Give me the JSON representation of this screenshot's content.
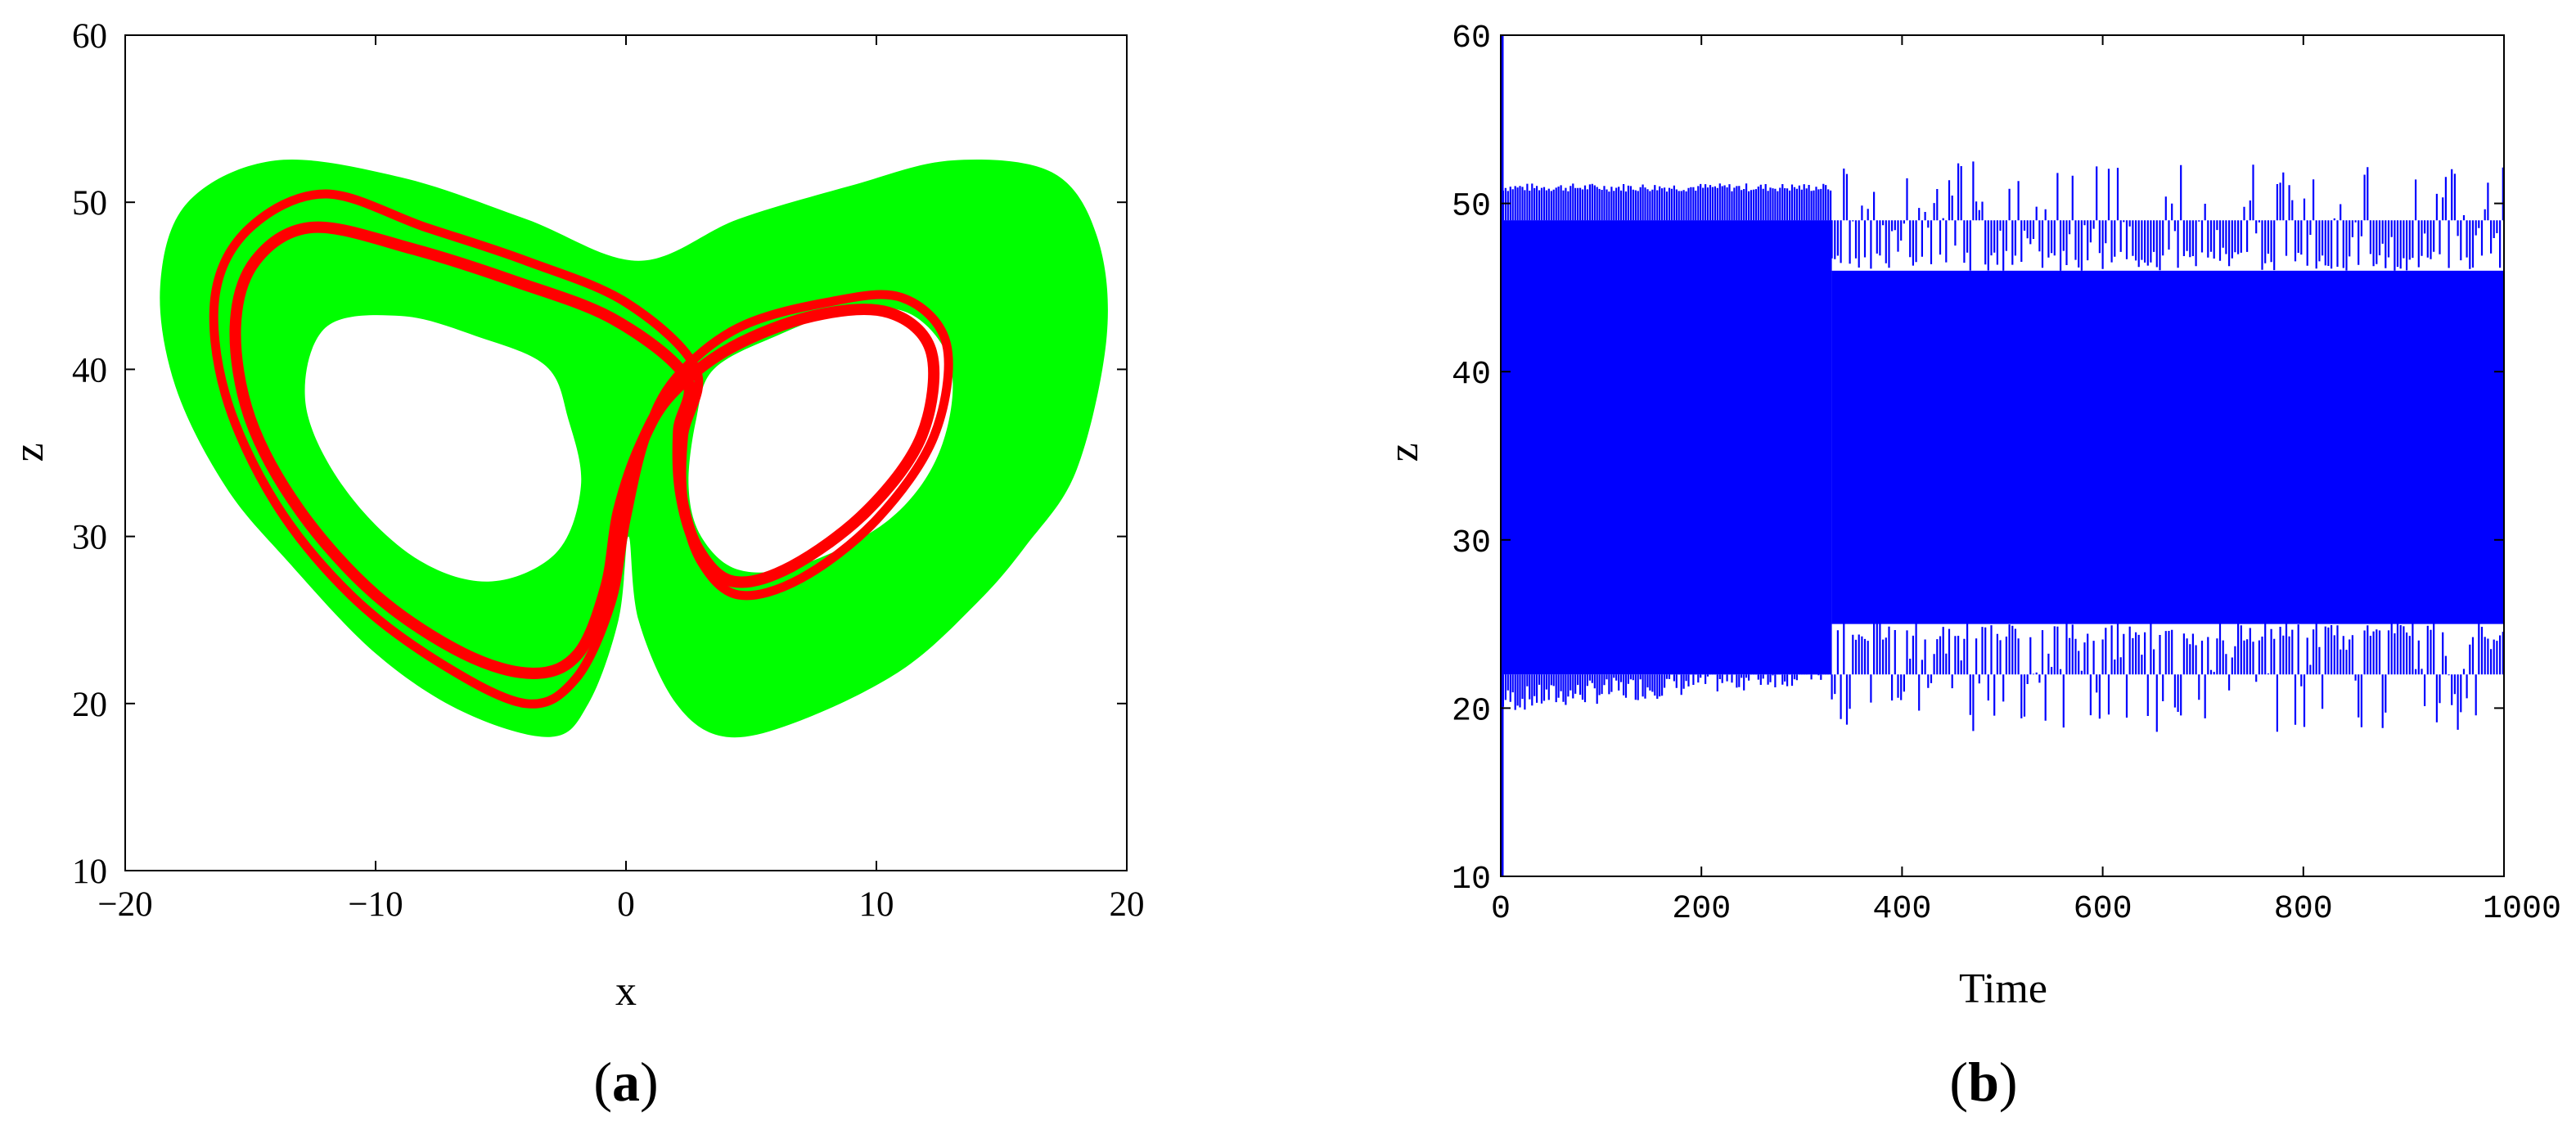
{
  "chart_data": [
    {
      "id": "a",
      "type": "line",
      "panel_label": {
        "open": "(",
        "letter": "a",
        "close": ")"
      },
      "xlabel": "x",
      "ylabel": "z",
      "xlim": [
        -20,
        20
      ],
      "ylim": [
        10,
        60
      ],
      "xticks": [
        "−20",
        "−10",
        "0",
        "10",
        "20"
      ],
      "xtick_values": [
        -20,
        -10,
        0,
        10,
        20
      ],
      "yticks": [
        "10",
        "20",
        "30",
        "40",
        "50",
        "60"
      ],
      "ytick_values": [
        10,
        20,
        30,
        40,
        50,
        60
      ],
      "grid": false,
      "series": [
        {
          "color": "#00ff00",
          "kind": "filled-attractor",
          "outer": [
            [
              0.5,
              46.5
            ],
            [
              -4,
              49
            ],
            [
              -9,
              51.5
            ],
            [
              -14,
              52.5
            ],
            [
              -17.5,
              50
            ],
            [
              -18.6,
              45
            ],
            [
              -18,
              39
            ],
            [
              -16,
              33
            ],
            [
              -13.5,
              28.5
            ],
            [
              -10,
              23
            ],
            [
              -6.5,
              19.5
            ],
            [
              -3,
              18
            ],
            [
              -1.5,
              20
            ],
            [
              -0.3,
              25
            ],
            [
              0.1,
              30
            ],
            [
              0.5,
              25
            ],
            [
              2,
              20
            ],
            [
              4,
              18
            ],
            [
              7,
              19
            ],
            [
              11,
              22
            ],
            [
              14,
              26
            ],
            [
              16,
              29.5
            ],
            [
              18,
              34
            ],
            [
              19.2,
              42
            ],
            [
              18.8,
              48
            ],
            [
              17,
              51.8
            ],
            [
              13,
              52.5
            ],
            [
              9,
              51
            ],
            [
              4.5,
              49
            ],
            [
              0.5,
              46.5
            ]
          ],
          "hole_left": [
            [
              -12,
              42.5
            ],
            [
              -9,
              43.2
            ],
            [
              -6,
              42
            ],
            [
              -3.2,
              40.2
            ],
            [
              -2.3,
              37
            ],
            [
              -1.8,
              33
            ],
            [
              -2.8,
              29
            ],
            [
              -5.5,
              27.3
            ],
            [
              -8.5,
              28.8
            ],
            [
              -11.3,
              33
            ],
            [
              -12.8,
              38
            ],
            [
              -12,
              42.5
            ]
          ],
          "hole_right": [
            [
              2.8,
              37
            ],
            [
              3.5,
              40
            ],
            [
              6,
              42
            ],
            [
              9,
              43.6
            ],
            [
              11.5,
              43.2
            ],
            [
              13,
              40
            ],
            [
              12.5,
              35
            ],
            [
              10.5,
              31
            ],
            [
              7,
              28.3
            ],
            [
              4.5,
              28
            ],
            [
              3,
              30
            ],
            [
              2.5,
              33
            ],
            [
              2.8,
              37
            ]
          ]
        },
        {
          "color": "#ff0000",
          "kind": "periodic-orbit",
          "loops": [
            [
              [
                2.8,
                40
              ],
              [
                0,
                44
              ],
              [
                -4,
                46.5
              ],
              [
                -8,
                48.5
              ],
              [
                -12,
                50.5
              ],
              [
                -15,
                48.5
              ],
              [
                -16.4,
                44.5
              ],
              [
                -16,
                38.5
              ],
              [
                -14,
                32
              ],
              [
                -11,
                26.5
              ],
              [
                -7.5,
                22.5
              ],
              [
                -4,
                20
              ],
              [
                -2,
                21.5
              ],
              [
                -0.6,
                26
              ],
              [
                0,
                31
              ],
              [
                0.8,
                36
              ],
              [
                2,
                39.5
              ],
              [
                4.5,
                42.5
              ],
              [
                8,
                44
              ],
              [
                11,
                44.3
              ],
              [
                12.8,
                41.5
              ],
              [
                12.3,
                36
              ],
              [
                10,
                31
              ],
              [
                7,
                27.5
              ],
              [
                4.5,
                26.5
              ],
              [
                3,
                28.5
              ],
              [
                2.3,
                32
              ],
              [
                2.3,
                36
              ],
              [
                2.8,
                40
              ]
            ],
            [
              [
                2.4,
                39.5
              ],
              [
                -0.5,
                43
              ],
              [
                -4.5,
                45.3
              ],
              [
                -8.5,
                47.2
              ],
              [
                -12.5,
                48.5
              ],
              [
                -14.8,
                46.5
              ],
              [
                -15.6,
                42.5
              ],
              [
                -15,
                37
              ],
              [
                -13,
                31.5
              ],
              [
                -10,
                26.5
              ],
              [
                -6.5,
                23
              ],
              [
                -3.7,
                21.8
              ],
              [
                -1.9,
                23
              ],
              [
                -0.8,
                27
              ],
              [
                -0.3,
                31.5
              ],
              [
                0.6,
                35.5
              ],
              [
                1.8,
                38.5
              ],
              [
                4.2,
                41.3
              ],
              [
                7.5,
                43.2
              ],
              [
                10.5,
                43.4
              ],
              [
                12.2,
                41
              ],
              [
                11.8,
                36
              ],
              [
                9.6,
                31.5
              ],
              [
                6.6,
                28.2
              ],
              [
                4.3,
                27.3
              ],
              [
                2.9,
                29.2
              ],
              [
                2.2,
                32.5
              ],
              [
                2.1,
                36.3
              ],
              [
                2.4,
                39.5
              ]
            ]
          ]
        }
      ]
    },
    {
      "id": "b",
      "type": "line",
      "panel_label": {
        "open": "(",
        "letter": "b",
        "close": ")"
      },
      "xlabel": "Time",
      "ylabel": "z",
      "xlim": [
        0,
        1000
      ],
      "ylim": [
        10,
        60
      ],
      "xticks": [
        "0",
        "200",
        "400",
        "600",
        "800",
        "1000"
      ],
      "xtick_values": [
        0,
        200,
        400,
        600,
        800,
        1000
      ],
      "yticks": [
        "10",
        "20",
        "30",
        "40",
        "50",
        "60"
      ],
      "ytick_values": [
        10,
        20,
        30,
        40,
        50,
        60
      ],
      "grid": false,
      "series": [
        {
          "color": "#0000ff",
          "kind": "oscillation",
          "initial": {
            "t": 0,
            "z_max": 60,
            "z_min": 10
          },
          "dense_band": [
            {
              "t": [
                0,
                330
              ],
              "z_max": 49,
              "z_min": 22
            },
            {
              "t": [
                330,
                1000
              ],
              "z_max": 46,
              "z_min": 25
            }
          ],
          "peak_envelope": [
            {
              "t": [
                0,
                330
              ],
              "max": [
                50.7,
                51.2
              ],
              "min": [
                19.7,
                23.5
              ]
            },
            {
              "t": [
                330,
                1000
              ],
              "max": [
                47,
                52.5
              ],
              "min": [
                18.5,
                24.5
              ]
            }
          ]
        }
      ]
    }
  ]
}
